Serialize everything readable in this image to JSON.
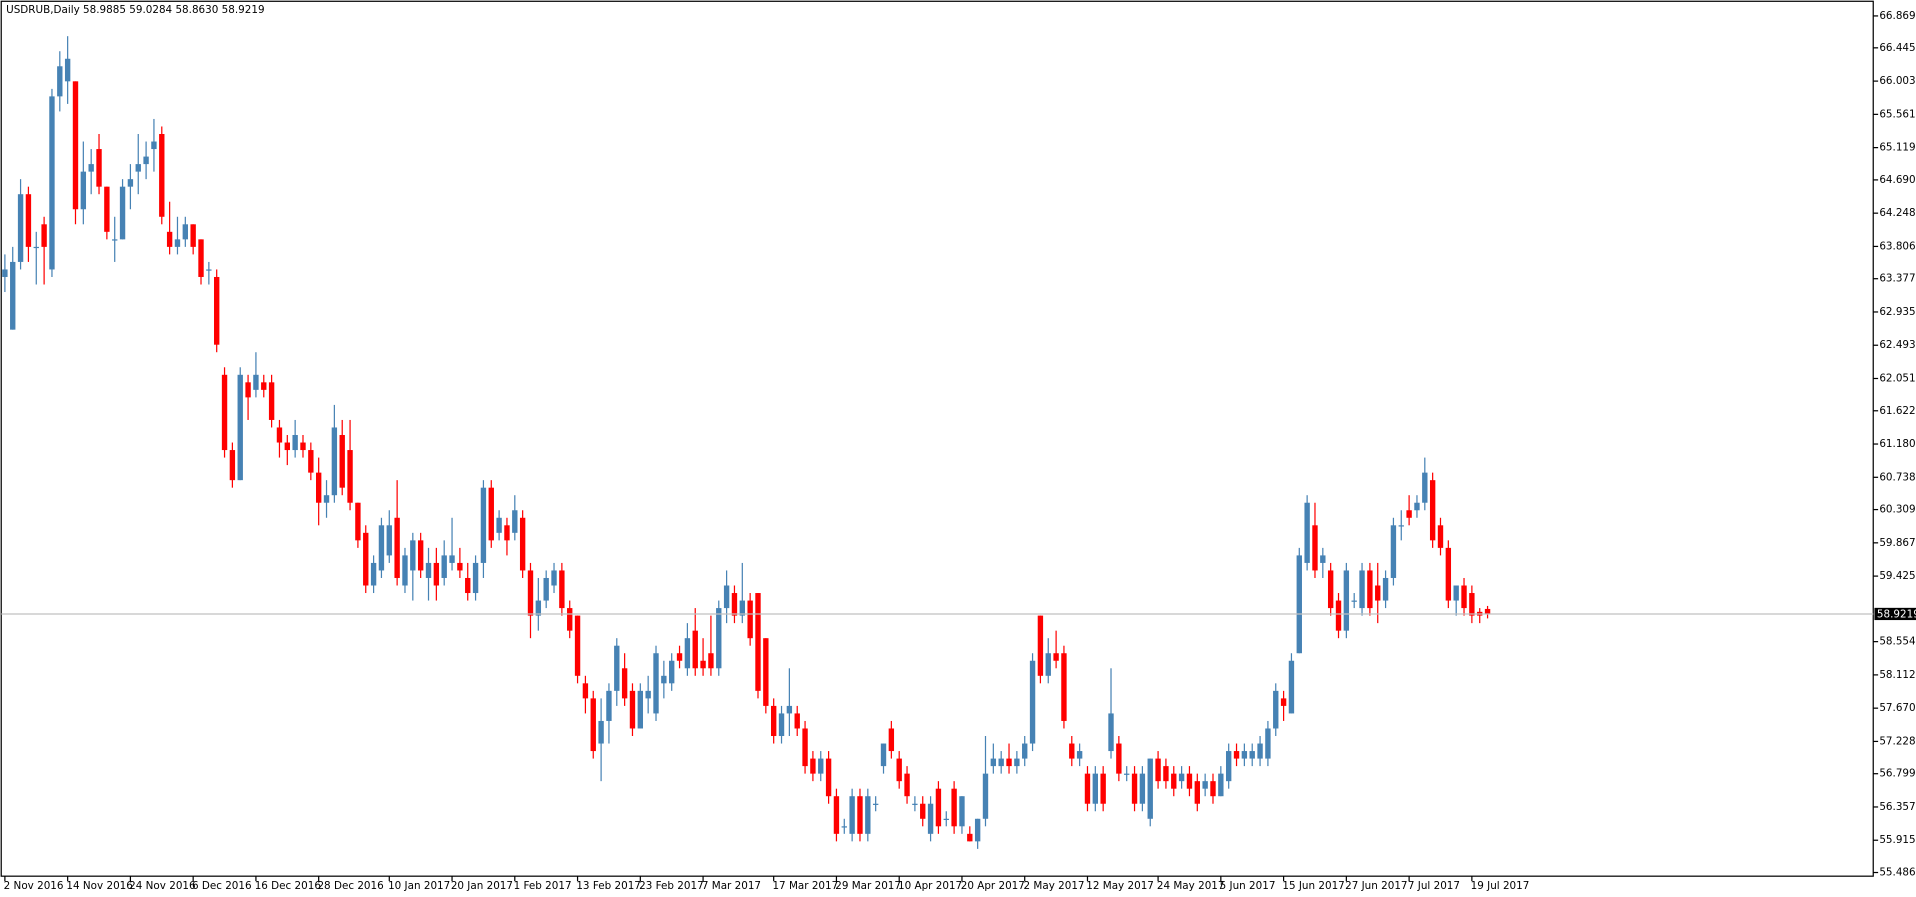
{
  "chart_data": {
    "type": "candlestick",
    "title": "USDRUB,Daily  58.9885 59.0284 58.8630 58.9219",
    "bull_color": "#4682b4",
    "bear_color": "#ff0000",
    "ylim": [
      55.486,
      66.869
    ],
    "yticks": [
      {
        "value": 66.869,
        "label": "66.8690"
      },
      {
        "value": 66.445,
        "label": "66.4450"
      },
      {
        "value": 66.003,
        "label": "66.0030"
      },
      {
        "value": 65.561,
        "label": "65.5610"
      },
      {
        "value": 65.119,
        "label": "65.1190"
      },
      {
        "value": 64.69,
        "label": "64.6900"
      },
      {
        "value": 64.248,
        "label": "64.2480"
      },
      {
        "value": 63.806,
        "label": "63.8060"
      },
      {
        "value": 63.377,
        "label": "63.3770"
      },
      {
        "value": 62.935,
        "label": "62.9350"
      },
      {
        "value": 62.493,
        "label": "62.4930"
      },
      {
        "value": 62.051,
        "label": "62.0510"
      },
      {
        "value": 61.622,
        "label": "61.6220"
      },
      {
        "value": 61.18,
        "label": "61.1800"
      },
      {
        "value": 60.738,
        "label": "60.7380"
      },
      {
        "value": 60.309,
        "label": "60.3090"
      },
      {
        "value": 59.867,
        "label": "59.8670"
      },
      {
        "value": 59.425,
        "label": "59.4250"
      },
      {
        "value": 58.554,
        "label": "58.5540"
      },
      {
        "value": 58.112,
        "label": "58.1120"
      },
      {
        "value": 57.67,
        "label": "57.6700"
      },
      {
        "value": 57.228,
        "label": "57.2280"
      },
      {
        "value": 56.799,
        "label": "56.7990"
      },
      {
        "value": 56.357,
        "label": "56.3570"
      },
      {
        "value": 55.915,
        "label": "55.9150"
      },
      {
        "value": 55.486,
        "label": "55.4860"
      }
    ],
    "last_price": 58.9219,
    "xticks": [
      {
        "value": 0,
        "label": "2 Nov 2016"
      },
      {
        "value": 8,
        "label": "14 Nov 2016"
      },
      {
        "value": 16,
        "label": "24 Nov 2016"
      },
      {
        "value": 24,
        "label": "6 Dec 2016"
      },
      {
        "value": 32,
        "label": "16 Dec 2016"
      },
      {
        "value": 40,
        "label": "28 Dec 2016"
      },
      {
        "value": 49,
        "label": "10 Jan 2017"
      },
      {
        "value": 57,
        "label": "20 Jan 2017"
      },
      {
        "value": 65,
        "label": "1 Feb 2017"
      },
      {
        "value": 73,
        "label": "13 Feb 2017"
      },
      {
        "value": 81,
        "label": "23 Feb 2017"
      },
      {
        "value": 89,
        "label": "7 Mar 2017"
      },
      {
        "value": 98,
        "label": "17 Mar 2017"
      },
      {
        "value": 106,
        "label": "29 Mar 2017"
      },
      {
        "value": 114,
        "label": "10 Apr 2017"
      },
      {
        "value": 122,
        "label": "20 Apr 2017"
      },
      {
        "value": 130,
        "label": "2 May 2017"
      },
      {
        "value": 138,
        "label": "12 May 2017"
      },
      {
        "value": 147,
        "label": "24 May 2017"
      },
      {
        "value": 155,
        "label": "5 Jun 2017"
      },
      {
        "value": 163,
        "label": "15 Jun 2017"
      },
      {
        "value": 171,
        "label": "27 Jun 2017"
      },
      {
        "value": 179,
        "label": "7 Jul 2017"
      },
      {
        "value": 187,
        "label": "19 Jul 2017"
      }
    ],
    "candles": [
      [
        63.4,
        63.7,
        63.2,
        63.5
      ],
      [
        62.7,
        63.8,
        62.7,
        63.6
      ],
      [
        63.6,
        64.7,
        63.5,
        64.5
      ],
      [
        64.5,
        64.6,
        63.6,
        63.8
      ],
      [
        63.8,
        64.0,
        63.3,
        63.8
      ],
      [
        64.1,
        64.2,
        63.3,
        63.8
      ],
      [
        63.5,
        65.9,
        63.4,
        65.8
      ],
      [
        65.8,
        66.4,
        65.6,
        66.2
      ],
      [
        66.0,
        66.6,
        65.7,
        66.3
      ],
      [
        66.0,
        66.0,
        64.1,
        64.3
      ],
      [
        64.3,
        65.2,
        64.1,
        64.8
      ],
      [
        64.8,
        65.1,
        64.5,
        64.9
      ],
      [
        65.1,
        65.3,
        64.5,
        64.6
      ],
      [
        64.6,
        64.6,
        63.9,
        64.0
      ],
      [
        63.9,
        64.2,
        63.6,
        63.9
      ],
      [
        63.9,
        64.7,
        63.9,
        64.6
      ],
      [
        64.6,
        64.9,
        64.3,
        64.7
      ],
      [
        64.8,
        65.3,
        64.5,
        64.9
      ],
      [
        64.9,
        65.2,
        64.7,
        65.0
      ],
      [
        65.1,
        65.5,
        64.8,
        65.2
      ],
      [
        65.3,
        65.4,
        64.1,
        64.2
      ],
      [
        64.0,
        64.4,
        63.7,
        63.8
      ],
      [
        63.8,
        64.2,
        63.7,
        63.9
      ],
      [
        63.9,
        64.2,
        63.8,
        64.1
      ],
      [
        64.1,
        64.1,
        63.7,
        63.8
      ],
      [
        63.9,
        63.9,
        63.3,
        63.4
      ],
      [
        63.5,
        63.6,
        63.3,
        63.5
      ],
      [
        63.4,
        63.5,
        62.4,
        62.5
      ],
      [
        62.1,
        62.2,
        61.0,
        61.1
      ],
      [
        61.1,
        61.2,
        60.6,
        60.7
      ],
      [
        60.7,
        62.2,
        60.7,
        62.1
      ],
      [
        62.0,
        62.1,
        61.5,
        61.8
      ],
      [
        61.9,
        62.4,
        61.8,
        62.1
      ],
      [
        62.0,
        62.1,
        61.8,
        61.9
      ],
      [
        62.0,
        62.1,
        61.4,
        61.5
      ],
      [
        61.4,
        61.5,
        61.0,
        61.2
      ],
      [
        61.2,
        61.3,
        60.9,
        61.1
      ],
      [
        61.1,
        61.5,
        61.0,
        61.3
      ],
      [
        61.2,
        61.3,
        61.0,
        61.1
      ],
      [
        61.1,
        61.2,
        60.7,
        60.8
      ],
      [
        60.8,
        61.0,
        60.1,
        60.4
      ],
      [
        60.4,
        60.7,
        60.2,
        60.5
      ],
      [
        60.5,
        61.7,
        60.4,
        61.4
      ],
      [
        61.3,
        61.5,
        60.5,
        60.6
      ],
      [
        61.1,
        61.5,
        60.3,
        60.4
      ],
      [
        60.4,
        60.4,
        59.8,
        59.9
      ],
      [
        60.0,
        60.1,
        59.2,
        59.3
      ],
      [
        59.3,
        59.7,
        59.2,
        59.6
      ],
      [
        59.5,
        60.2,
        59.4,
        60.1
      ],
      [
        59.7,
        60.3,
        59.6,
        60.1
      ],
      [
        60.2,
        60.7,
        59.3,
        59.4
      ],
      [
        59.3,
        59.8,
        59.2,
        59.7
      ],
      [
        59.5,
        60.0,
        59.1,
        59.9
      ],
      [
        59.9,
        60.0,
        59.4,
        59.5
      ],
      [
        59.4,
        59.8,
        59.1,
        59.6
      ],
      [
        59.6,
        59.8,
        59.1,
        59.3
      ],
      [
        59.4,
        59.9,
        59.3,
        59.7
      ],
      [
        59.6,
        60.2,
        59.5,
        59.7
      ],
      [
        59.6,
        59.8,
        59.4,
        59.5
      ],
      [
        59.4,
        59.6,
        59.1,
        59.2
      ],
      [
        59.2,
        59.7,
        59.1,
        59.6
      ],
      [
        59.6,
        60.7,
        59.4,
        60.6
      ],
      [
        60.6,
        60.7,
        59.8,
        59.9
      ],
      [
        60.0,
        60.3,
        59.9,
        60.2
      ],
      [
        60.1,
        60.2,
        59.7,
        59.9
      ],
      [
        60.0,
        60.5,
        59.9,
        60.3
      ],
      [
        60.2,
        60.3,
        59.4,
        59.5
      ],
      [
        59.5,
        59.6,
        58.6,
        58.9
      ],
      [
        58.9,
        59.4,
        58.7,
        59.1
      ],
      [
        59.1,
        59.5,
        59.0,
        59.4
      ],
      [
        59.3,
        59.6,
        59.2,
        59.5
      ],
      [
        59.5,
        59.6,
        58.9,
        59.0
      ],
      [
        59.0,
        59.1,
        58.6,
        58.7
      ],
      [
        58.9,
        58.9,
        58.0,
        58.1
      ],
      [
        58.0,
        58.1,
        57.6,
        57.8
      ],
      [
        57.8,
        57.9,
        57.0,
        57.1
      ],
      [
        57.2,
        57.8,
        56.7,
        57.5
      ],
      [
        57.5,
        58.0,
        57.2,
        57.9
      ],
      [
        57.9,
        58.6,
        57.7,
        58.5
      ],
      [
        58.2,
        58.4,
        57.7,
        57.8
      ],
      [
        57.9,
        58.0,
        57.3,
        57.4
      ],
      [
        57.4,
        58.0,
        57.4,
        57.9
      ],
      [
        57.8,
        58.1,
        57.6,
        57.9
      ],
      [
        57.6,
        58.5,
        57.5,
        58.4
      ],
      [
        58.0,
        58.3,
        57.8,
        58.1
      ],
      [
        58.0,
        58.4,
        57.9,
        58.3
      ],
      [
        58.4,
        58.5,
        58.2,
        58.3
      ],
      [
        58.2,
        58.8,
        58.1,
        58.6
      ],
      [
        58.7,
        59.0,
        58.1,
        58.2
      ],
      [
        58.3,
        58.6,
        58.1,
        58.2
      ],
      [
        58.4,
        58.9,
        58.1,
        58.2
      ],
      [
        58.2,
        59.1,
        58.1,
        59.0
      ],
      [
        59.0,
        59.5,
        58.8,
        59.3
      ],
      [
        59.2,
        59.3,
        58.8,
        58.9
      ],
      [
        58.9,
        59.6,
        58.8,
        59.1
      ],
      [
        59.1,
        59.2,
        58.5,
        58.6
      ],
      [
        59.2,
        59.2,
        57.8,
        57.9
      ],
      [
        58.6,
        58.6,
        57.6,
        57.7
      ],
      [
        57.7,
        57.8,
        57.2,
        57.3
      ],
      [
        57.3,
        57.7,
        57.2,
        57.6
      ],
      [
        57.6,
        58.2,
        57.3,
        57.7
      ],
      [
        57.6,
        57.7,
        57.3,
        57.4
      ],
      [
        57.4,
        57.5,
        56.8,
        56.9
      ],
      [
        57.0,
        57.1,
        56.7,
        56.8
      ],
      [
        56.8,
        57.1,
        56.7,
        57.0
      ],
      [
        57.0,
        57.1,
        56.4,
        56.5
      ],
      [
        56.5,
        56.6,
        55.9,
        56.0
      ],
      [
        56.1,
        56.2,
        56.0,
        56.1
      ],
      [
        56.0,
        56.6,
        55.9,
        56.5
      ],
      [
        56.5,
        56.6,
        55.9,
        56.0
      ],
      [
        56.0,
        56.6,
        55.9,
        56.5
      ],
      [
        56.4,
        56.5,
        56.3,
        56.4
      ],
      [
        56.9,
        57.2,
        56.8,
        57.2
      ],
      [
        57.4,
        57.5,
        57.0,
        57.1
      ],
      [
        57.0,
        57.1,
        56.6,
        56.7
      ],
      [
        56.8,
        56.9,
        56.4,
        56.5
      ],
      [
        56.4,
        56.5,
        56.3,
        56.4
      ],
      [
        56.4,
        56.5,
        56.1,
        56.2
      ],
      [
        56.0,
        56.5,
        55.9,
        56.4
      ],
      [
        56.6,
        56.7,
        56.0,
        56.1
      ],
      [
        56.2,
        56.3,
        56.1,
        56.2
      ],
      [
        56.6,
        56.7,
        56.0,
        56.1
      ],
      [
        56.1,
        56.5,
        56.0,
        56.5
      ],
      [
        56.0,
        56.1,
        55.9,
        55.9
      ],
      [
        55.9,
        56.2,
        55.8,
        56.2
      ],
      [
        56.2,
        57.3,
        56.1,
        56.8
      ],
      [
        56.9,
        57.2,
        56.8,
        57.0
      ],
      [
        56.9,
        57.1,
        56.8,
        57.0
      ],
      [
        57.0,
        57.2,
        56.8,
        56.9
      ],
      [
        56.9,
        57.1,
        56.8,
        57.0
      ],
      [
        57.0,
        57.3,
        56.9,
        57.2
      ],
      [
        57.2,
        58.4,
        57.1,
        58.3
      ],
      [
        58.9,
        58.9,
        58.0,
        58.1
      ],
      [
        58.1,
        58.6,
        58.0,
        58.4
      ],
      [
        58.4,
        58.7,
        58.2,
        58.3
      ],
      [
        58.4,
        58.5,
        57.4,
        57.5
      ],
      [
        57.2,
        57.3,
        56.9,
        57.0
      ],
      [
        57.0,
        57.2,
        56.9,
        57.1
      ],
      [
        56.8,
        56.9,
        56.3,
        56.4
      ],
      [
        56.4,
        56.9,
        56.3,
        56.8
      ],
      [
        56.8,
        56.9,
        56.3,
        56.4
      ],
      [
        57.1,
        58.2,
        57.0,
        57.6
      ],
      [
        57.2,
        57.3,
        56.7,
        56.8
      ],
      [
        56.8,
        56.9,
        56.7,
        56.8
      ],
      [
        56.8,
        56.9,
        56.3,
        56.4
      ],
      [
        56.4,
        56.9,
        56.3,
        56.8
      ],
      [
        56.2,
        57.0,
        56.1,
        57.0
      ],
      [
        57.0,
        57.1,
        56.6,
        56.7
      ],
      [
        56.9,
        57.0,
        56.6,
        56.7
      ],
      [
        56.8,
        56.9,
        56.5,
        56.6
      ],
      [
        56.7,
        56.9,
        56.6,
        56.8
      ],
      [
        56.8,
        56.9,
        56.5,
        56.6
      ],
      [
        56.7,
        56.8,
        56.3,
        56.4
      ],
      [
        56.6,
        56.8,
        56.5,
        56.7
      ],
      [
        56.7,
        56.8,
        56.4,
        56.5
      ],
      [
        56.5,
        56.9,
        56.5,
        56.8
      ],
      [
        56.7,
        57.2,
        56.6,
        57.1
      ],
      [
        57.1,
        57.2,
        56.9,
        57.0
      ],
      [
        57.0,
        57.2,
        56.9,
        57.1
      ],
      [
        57.0,
        57.2,
        56.9,
        57.1
      ],
      [
        57.0,
        57.3,
        56.9,
        57.2
      ],
      [
        57.0,
        57.5,
        56.9,
        57.4
      ],
      [
        57.4,
        58.0,
        57.3,
        57.9
      ],
      [
        57.8,
        57.9,
        57.5,
        57.7
      ],
      [
        57.6,
        58.4,
        57.6,
        58.3
      ],
      [
        58.4,
        59.8,
        58.4,
        59.7
      ],
      [
        59.6,
        60.5,
        59.5,
        60.4
      ],
      [
        60.1,
        60.4,
        59.4,
        59.5
      ],
      [
        59.6,
        59.8,
        59.4,
        59.7
      ],
      [
        59.5,
        59.6,
        58.9,
        59.0
      ],
      [
        59.1,
        59.2,
        58.6,
        58.7
      ],
      [
        58.7,
        59.6,
        58.6,
        59.5
      ],
      [
        59.1,
        59.2,
        59.0,
        59.1
      ],
      [
        59.0,
        59.6,
        58.9,
        59.5
      ],
      [
        59.5,
        59.6,
        58.9,
        59.0
      ],
      [
        59.3,
        59.6,
        58.8,
        59.1
      ],
      [
        59.1,
        59.5,
        59.0,
        59.4
      ],
      [
        59.4,
        60.2,
        59.3,
        60.1
      ],
      [
        60.1,
        60.3,
        59.9,
        60.1
      ],
      [
        60.3,
        60.5,
        60.1,
        60.2
      ],
      [
        60.3,
        60.5,
        60.2,
        60.4
      ],
      [
        60.4,
        61.0,
        60.3,
        60.8
      ],
      [
        60.7,
        60.8,
        59.8,
        59.9
      ],
      [
        60.1,
        60.2,
        59.7,
        59.8
      ],
      [
        59.8,
        59.9,
        59.0,
        59.1
      ],
      [
        59.1,
        59.3,
        58.9,
        59.3
      ],
      [
        59.3,
        59.4,
        58.9,
        59.0
      ],
      [
        59.2,
        59.3,
        58.8,
        58.9
      ],
      [
        58.95,
        59.0,
        58.8,
        58.9
      ],
      [
        58.9885,
        59.0284,
        58.863,
        58.9219
      ]
    ]
  }
}
